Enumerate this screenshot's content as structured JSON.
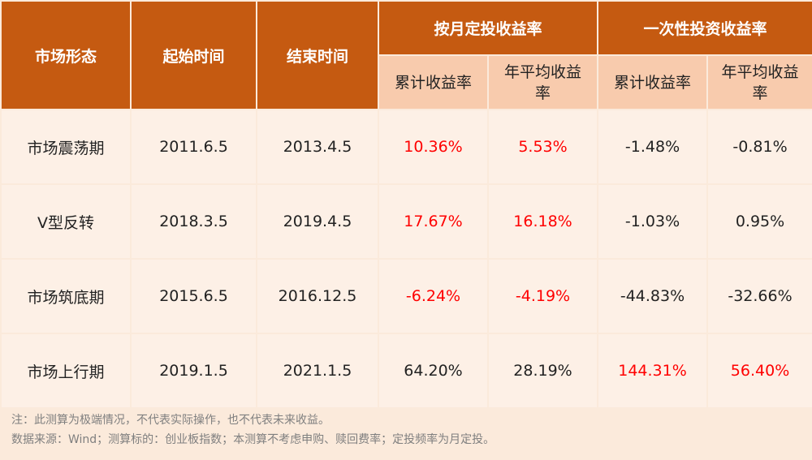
{
  "headers": {
    "market": "市场形态",
    "start": "起始时间",
    "end": "结束时间",
    "monthly_group": "按月定投收益率",
    "lump_group": "一次性投资收益率",
    "monthly_cum": "累计收益率",
    "monthly_ann": "年平均收益率",
    "lump_cum": "累计收益率",
    "lump_ann": "年平均收益率"
  },
  "rows": [
    {
      "market": "市场震荡期",
      "start": "2011.6.5",
      "end": "2013.4.5",
      "m_cum": "10.36%",
      "m_ann": "5.53%",
      "l_cum": "-1.48%",
      "l_ann": "-0.81%"
    },
    {
      "market": "V型反转",
      "start": "2018.3.5",
      "end": "2019.4.5",
      "m_cum": "17.67%",
      "m_ann": "16.18%",
      "l_cum": "-1.03%",
      "l_ann": "0.95%"
    },
    {
      "market": "市场筑底期",
      "start": "2015.6.5",
      "end": "2016.12.5",
      "m_cum": "-6.24%",
      "m_ann": "-4.19%",
      "l_cum": "-44.83%",
      "l_ann": "-32.66%"
    },
    {
      "market": "市场上行期",
      "start": "2019.1.5",
      "end": "2021.1.5",
      "m_cum": "64.20%",
      "m_ann": "28.19%",
      "l_cum": "144.31%",
      "l_ann": "56.40%"
    }
  ],
  "notes": {
    "line1": "注：此测算为极端情况，不代表实际操作，也不代表未来收益。",
    "line2": "数据来源：Wind；测算标的：创业板指数；本测算不考虑申购、赎回费率；定投频率为月定投。"
  },
  "colors": {
    "header_bg": "#c55a11",
    "subheader_bg": "#f8cbad",
    "cell_bg": "#fdf0e6",
    "highlight_text": "#ff0000"
  }
}
